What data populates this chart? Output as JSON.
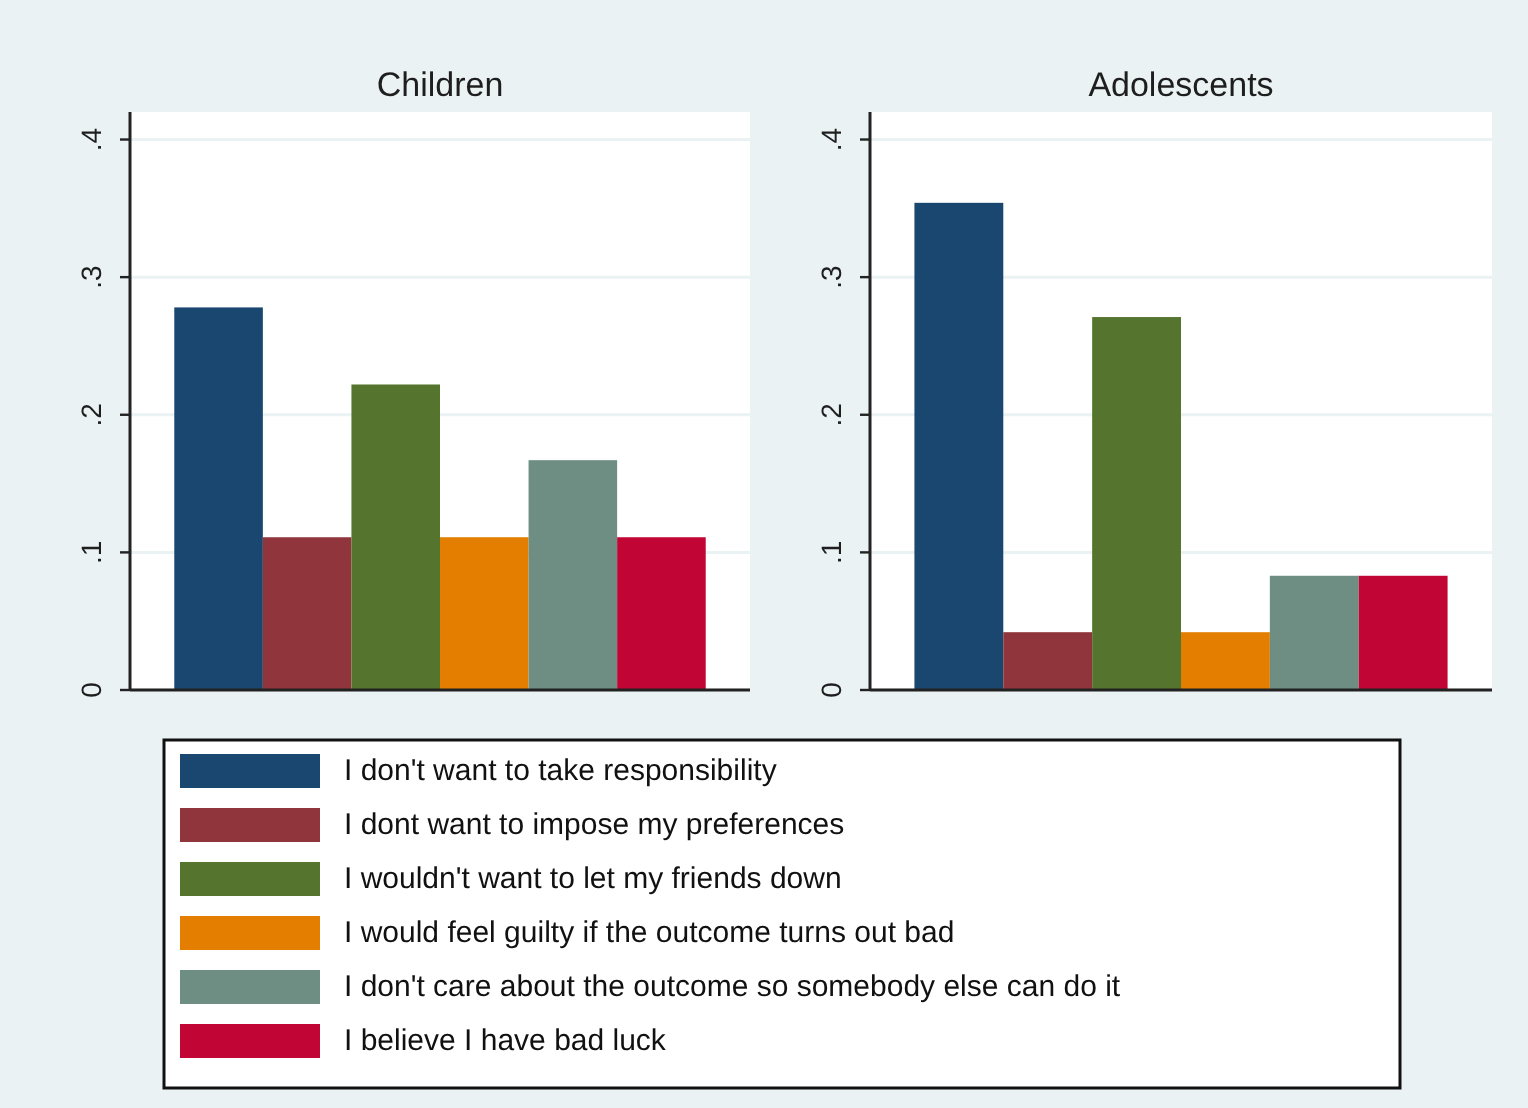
{
  "chart_data": [
    {
      "type": "bar",
      "title": "Children",
      "categories": [
        null
      ],
      "ylim": [
        0,
        0.42
      ],
      "yticks": [
        {
          "value": 0,
          "label": "0"
        },
        {
          "value": 0.1,
          "label": ".1"
        },
        {
          "value": 0.2,
          "label": ".2"
        },
        {
          "value": 0.3,
          "label": ".3"
        },
        {
          "value": 0.4,
          "label": ".4"
        }
      ],
      "grid": "y",
      "legend": "bottom",
      "series": [
        {
          "name": "I don't want to take responsibility",
          "color": "#1a476f",
          "values": [
            0.278
          ]
        },
        {
          "name": "I dont want to impose my preferences",
          "color": "#90353b",
          "values": [
            0.111
          ]
        },
        {
          "name": "I wouldn't want to let my friends down",
          "color": "#55752f",
          "values": [
            0.222
          ]
        },
        {
          "name": "I would feel guilty if the outcome turns out bad",
          "color": "#e37e00",
          "values": [
            0.111
          ]
        },
        {
          "name": "I don't care about the outcome so somebody else can do it",
          "color": "#6e8e84",
          "values": [
            0.167
          ]
        },
        {
          "name": "I believe I have bad luck",
          "color": "#c10534",
          "values": [
            0.111
          ]
        }
      ]
    },
    {
      "type": "bar",
      "title": "Adolescents",
      "categories": [
        null
      ],
      "ylim": [
        0,
        0.42
      ],
      "yticks": [
        {
          "value": 0,
          "label": "0"
        },
        {
          "value": 0.1,
          "label": ".1"
        },
        {
          "value": 0.2,
          "label": ".2"
        },
        {
          "value": 0.3,
          "label": ".3"
        },
        {
          "value": 0.4,
          "label": ".4"
        }
      ],
      "grid": "y",
      "series": [
        {
          "color": "#1a476f",
          "values": [
            0.354
          ]
        },
        {
          "color": "#90353b",
          "values": [
            0.042
          ]
        },
        {
          "color": "#55752f",
          "values": [
            0.271
          ]
        },
        {
          "color": "#e37e00",
          "values": [
            0.042
          ]
        },
        {
          "color": "#6e8e84",
          "values": [
            0.083
          ]
        },
        {
          "color": "#c10534",
          "values": [
            0.083
          ]
        }
      ]
    }
  ]
}
